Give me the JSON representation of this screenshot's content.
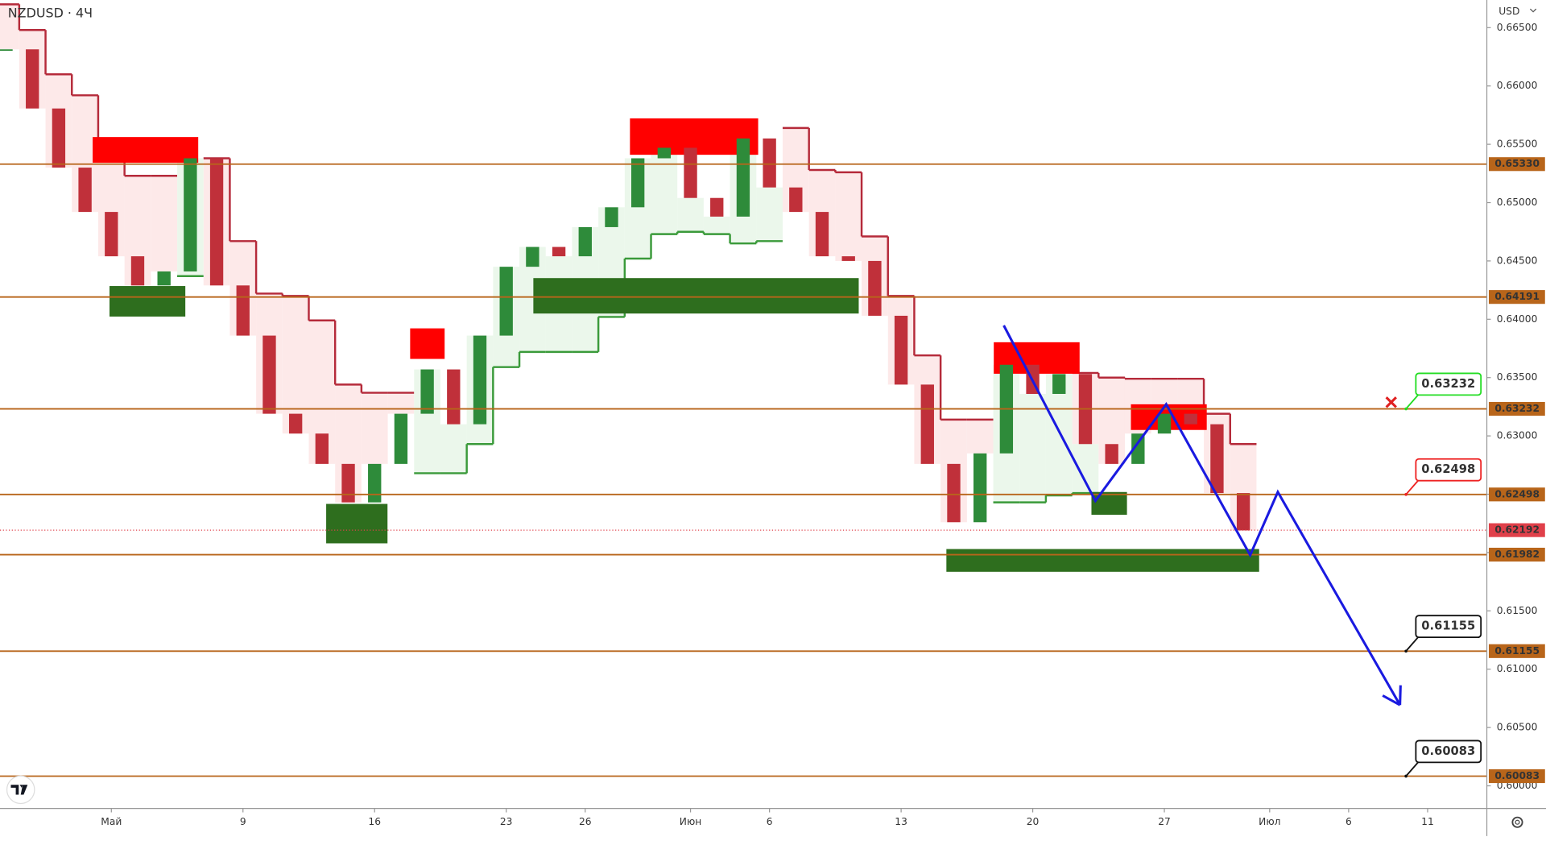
{
  "header": {
    "symbol": "NZDUSD · 4Ч",
    "currency": "USD"
  },
  "chart_data": {
    "type": "candlestick",
    "xlim": [
      -4.23,
      52.25
    ],
    "ylim": [
      0.59806,
      0.66737
    ],
    "xticks": [
      {
        "value": 0,
        "label": "Май"
      },
      {
        "value": 5,
        "label": "9"
      },
      {
        "value": 10,
        "label": "16"
      },
      {
        "value": 15,
        "label": "23"
      },
      {
        "value": 18,
        "label": "26"
      },
      {
        "value": 22,
        "label": "Июн"
      },
      {
        "value": 25,
        "label": "6"
      },
      {
        "value": 30,
        "label": "13"
      },
      {
        "value": 35,
        "label": "20"
      },
      {
        "value": 40,
        "label": "27"
      },
      {
        "value": 44,
        "label": "Июл"
      },
      {
        "value": 47,
        "label": "6"
      },
      {
        "value": 50,
        "label": "11"
      }
    ],
    "yticks": [
      {
        "value": 0.6,
        "label": "0.60000"
      },
      {
        "value": 0.605,
        "label": "0.60500"
      },
      {
        "value": 0.61,
        "label": "0.61000"
      },
      {
        "value": 0.615,
        "label": "0.61500"
      },
      {
        "value": 0.62,
        "label": "0.62000"
      },
      {
        "value": 0.625,
        "label": "0.62500"
      },
      {
        "value": 0.63,
        "label": "0.63000"
      },
      {
        "value": 0.635,
        "label": "0.63500"
      },
      {
        "value": 0.64,
        "label": "0.64000"
      },
      {
        "value": 0.645,
        "label": "0.64500"
      },
      {
        "value": 0.65,
        "label": "0.65000"
      },
      {
        "value": 0.655,
        "label": "0.65500"
      },
      {
        "value": 0.66,
        "label": "0.66000"
      },
      {
        "value": 0.665,
        "label": "0.66500"
      }
    ],
    "x": [
      -4,
      -3,
      -2,
      -1,
      0,
      1,
      2,
      3,
      4,
      5,
      6,
      7,
      8,
      9,
      10,
      11,
      12,
      13,
      14,
      15,
      16,
      17,
      18,
      19,
      20,
      21,
      22,
      23,
      24,
      25,
      26,
      27,
      28,
      29,
      30,
      31,
      32,
      33,
      34,
      35,
      36,
      37,
      38,
      39,
      40,
      41,
      42,
      43
    ],
    "closes": [
      0.66314,
      0.65807,
      0.653,
      0.6492,
      0.6454,
      0.6429,
      0.6441,
      0.6538,
      0.6429,
      0.6386,
      0.6319,
      0.6302,
      0.6276,
      0.6243,
      0.6276,
      0.6319,
      0.6357,
      0.631,
      0.6386,
      0.6445,
      0.6462,
      0.6454,
      0.6479,
      0.6496,
      0.6538,
      0.6547,
      0.6504,
      0.6488,
      0.6555,
      0.6513,
      0.6492,
      0.6454,
      0.645,
      0.6403,
      0.6344,
      0.6276,
      0.6226,
      0.6285,
      0.6361,
      0.6336,
      0.6353,
      0.6293,
      0.6276,
      0.6302,
      0.6319,
      0.631,
      0.6251,
      0.6219
    ],
    "up_color": "#2e8b3a",
    "down_color": "#c0303a",
    "resistance": {
      "color": "#b52a3a",
      "fill": "#fde3e3",
      "values": [
        0.667,
        0.6648,
        0.661,
        0.6592,
        0.6555,
        0.6523,
        0.6523,
        null,
        0.6538,
        0.6467,
        0.6422,
        0.642,
        0.6399,
        0.6344,
        0.6337,
        0.6337,
        null,
        null,
        null,
        null,
        null,
        null,
        null,
        null,
        null,
        null,
        null,
        null,
        null,
        null,
        0.6564,
        0.6528,
        0.6526,
        0.6471,
        0.642,
        0.6369,
        0.6314,
        0.6314,
        null,
        null,
        null,
        0.6354,
        0.635,
        0.6349,
        0.6349,
        0.6349,
        0.6319,
        0.6293
      ]
    },
    "support": {
      "color": "#3a9a3a",
      "fill": "#e6f5e6",
      "values": [
        null,
        null,
        null,
        null,
        null,
        null,
        null,
        0.6437,
        null,
        null,
        null,
        null,
        null,
        null,
        null,
        null,
        0.6268,
        0.6268,
        0.6293,
        0.6359,
        0.6372,
        0.6372,
        0.6372,
        0.6402,
        0.6452,
        0.6473,
        0.6475,
        0.6473,
        0.6465,
        0.6467,
        null,
        null,
        null,
        null,
        null,
        null,
        null,
        null,
        0.6243,
        0.6243,
        0.6249,
        0.6251,
        null,
        null,
        null,
        null,
        null,
        null
      ]
    },
    "supply_zones": {
      "color": "#ff0000",
      "zones": [
        [
          -0.71,
          3.3,
          0.65342,
          0.65562
        ],
        [
          11.35,
          12.66,
          0.6366,
          0.63922
        ],
        [
          19.7,
          24.57,
          0.6541,
          0.65722
        ],
        [
          33.52,
          36.78,
          0.63533,
          0.63803
        ],
        [
          38.73,
          41.61,
          0.63051,
          0.63271
        ]
      ]
    },
    "demand_zones": {
      "color": "#2e6e1e",
      "zones": [
        [
          -0.07,
          2.81,
          0.64023,
          0.64285
        ],
        [
          8.16,
          10.49,
          0.62079,
          0.62417
        ],
        [
          16.03,
          28.39,
          0.64049,
          0.64353
        ],
        [
          31.72,
          43.6,
          0.61835,
          0.6203
        ],
        [
          37.23,
          38.58,
          0.62324,
          0.62519
        ]
      ]
    },
    "levels": {
      "color": "#b8651a",
      "items": [
        {
          "value": 0.6533,
          "label": "0.65330"
        },
        {
          "value": 0.64191,
          "label": "0.64191"
        },
        {
          "value": 0.63232,
          "label": "0.63232"
        },
        {
          "value": 0.62498,
          "label": "0.62498"
        },
        {
          "value": 0.61982,
          "label": "0.61982"
        },
        {
          "value": 0.61155,
          "label": "0.61155"
        },
        {
          "value": 0.60083,
          "label": "0.60083"
        }
      ]
    },
    "last_price": {
      "value": 0.62192,
      "label": "0.62192",
      "color": "#e0404a"
    },
    "projection": {
      "color": "#1a1ae0",
      "x": [
        33.9,
        37.38,
        40.07,
        43.26,
        44.31,
        48.95
      ],
      "values": [
        0.63947,
        0.62443,
        0.63271,
        0.61978,
        0.62519,
        0.60693
      ]
    },
    "annotations": [
      {
        "value": 0.63232,
        "label": "0.63232",
        "color": "#22dd22"
      },
      {
        "value": 0.62498,
        "label": "0.62498",
        "color": "#ee2222"
      },
      {
        "value": 0.61155,
        "label": "0.61155",
        "color": "#111111"
      },
      {
        "value": 0.60083,
        "label": "0.60083",
        "color": "#111111"
      }
    ]
  }
}
